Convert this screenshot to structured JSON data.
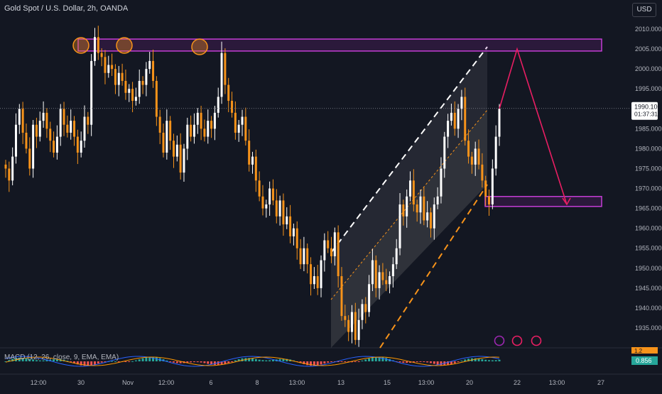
{
  "header": {
    "title": "Gold Spot / U.S. Dollar, 2h, OANDA",
    "currency": "USD"
  },
  "price_axis": {
    "ticks": [
      "2010.000",
      "2005.000",
      "2000.000",
      "1995.000",
      "1985.000",
      "1980.000",
      "1975.000",
      "1970.000",
      "1965.000",
      "1960.000",
      "1955.000",
      "1950.000",
      "1945.000",
      "1940.000",
      "1935.000"
    ],
    "current_price": "1990.100",
    "countdown": "01:37:31"
  },
  "time_axis": {
    "labels": [
      "12:00",
      "30",
      "Nov",
      "12:00",
      "6",
      "8",
      "13:00",
      "13",
      "15",
      "13:00",
      "20",
      "22",
      "13:00",
      "27"
    ]
  },
  "macd": {
    "label": "MACD (12, 26, close, 9, EMA, EMA)",
    "value": "0.856",
    "upper_badge": "1.2"
  },
  "colors": {
    "background": "#131722",
    "up": "#ffffff",
    "down": "#f7931a",
    "zone_border": "#c53dd6",
    "zone_fill": "rgba(156,39,176,0.18)",
    "projection": "#e91e63",
    "channel_upper": "#ffffff",
    "channel_lower": "#f7931a",
    "macd_pos": "#26a69a",
    "macd_neg": "#ef5350",
    "macd_line": "#2962ff",
    "signal_line": "#ff9800"
  },
  "chart_data": {
    "type": "candlestick",
    "symbol": "Gold Spot / U.S. Dollar",
    "interval": "2h",
    "ylim": [
      1932,
      2011
    ],
    "key_points": [
      {
        "label": "late Oct high",
        "value": 2009
      },
      {
        "label": "Oct 30 high",
        "value": 2004
      },
      {
        "label": "Nov 6 high",
        "value": 2004
      },
      {
        "label": "Nov 13 low",
        "value": 1931
      },
      {
        "label": "Nov 17 high",
        "value": 1993
      },
      {
        "label": "Nov 20 low",
        "value": 1966
      },
      {
        "label": "last close",
        "value": 1990.1
      }
    ],
    "resistance_zone": [
      2004.5,
      2007.5
    ],
    "support_zone": [
      1965.5,
      1968
    ],
    "projection_path": [
      1990,
      2005,
      1966
    ]
  }
}
